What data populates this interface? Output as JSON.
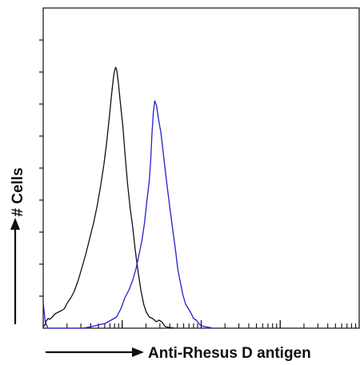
{
  "chart_data": {
    "type": "line",
    "title": "",
    "xlabel": "Anti-Rhesus D antigen",
    "ylabel": "# Cells",
    "xscale": "log",
    "xlim": [
      1,
      10000
    ],
    "ylim": [
      0,
      10
    ],
    "grid": false,
    "legend": "none",
    "series": [
      {
        "color": "#111111",
        "x": [
          1,
          1.05,
          1.09,
          1.15,
          1.22,
          1.3,
          1.42,
          1.55,
          1.7,
          1.84,
          2.03,
          2.24,
          2.47,
          2.78,
          3.1,
          3.45,
          3.88,
          4.35,
          4.85,
          5.3,
          5.85,
          6.32,
          6.85,
          7.38,
          7.85,
          8.25,
          8.55,
          8.92,
          9.42,
          10.2,
          10.9,
          11.7,
          12.6,
          13.6,
          14.6,
          15.8,
          17.2,
          18.7,
          20.2,
          22,
          24.3,
          27.1,
          29.2,
          31.7,
          35,
          40,
          46
        ],
        "y": [
          0.05,
          0.1,
          0.22,
          0.3,
          0.28,
          0.35,
          0.45,
          0.5,
          0.55,
          0.6,
          0.8,
          0.95,
          1.15,
          1.5,
          1.9,
          2.3,
          2.8,
          3.3,
          3.85,
          4.4,
          5.1,
          5.75,
          6.55,
          7.35,
          7.95,
          8.15,
          8.05,
          7.7,
          7.1,
          6.3,
          5.4,
          4.5,
          3.75,
          3.15,
          2.45,
          1.8,
          1.2,
          0.75,
          0.5,
          0.35,
          0.3,
          0.2,
          0.25,
          0.2,
          0.05,
          0.02,
          0
        ]
      },
      {
        "color": "#2222cc",
        "x": [
          1,
          1.06,
          1.15,
          1.8,
          3.2,
          4.1,
          5,
          6.1,
          7.2,
          8.5,
          9.6,
          10.8,
          12.2,
          13.6,
          14.9,
          16.2,
          17.8,
          19.2,
          20.5,
          22,
          23,
          23.8,
          24.8,
          25.8,
          27.2,
          28.9,
          30.7,
          32.5,
          34.6,
          37.2,
          40.2,
          43.5,
          47,
          50.5,
          54.3,
          58.5,
          63.5,
          69,
          75,
          80,
          87,
          97,
          106,
          116,
          128,
          140
        ],
        "y": [
          0.8,
          0.2,
          0,
          0,
          0,
          0.05,
          0.1,
          0.15,
          0.25,
          0.35,
          0.6,
          0.95,
          1.2,
          1.5,
          1.85,
          2.25,
          2.75,
          3.3,
          3.95,
          4.6,
          5.3,
          6.05,
          6.75,
          7.1,
          6.95,
          6.5,
          6.15,
          5.65,
          5.05,
          4.4,
          3.75,
          3.1,
          2.5,
          1.85,
          1.45,
          1.05,
          0.75,
          0.6,
          0.45,
          0.3,
          0.25,
          0.1,
          0.06,
          0.04,
          0.02,
          0
        ]
      }
    ]
  }
}
